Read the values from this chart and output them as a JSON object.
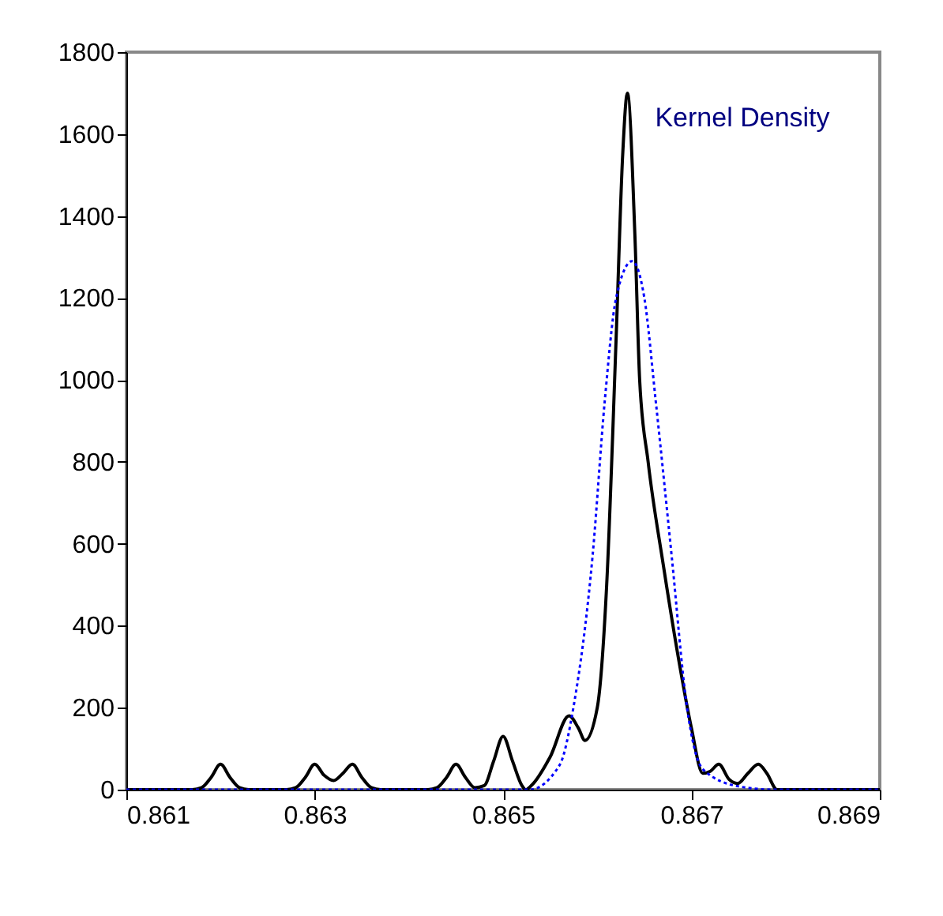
{
  "chart_data": {
    "type": "line",
    "xlim": [
      0.861,
      0.869
    ],
    "xticks": [
      0.861,
      0.863,
      0.865,
      0.867,
      0.869
    ],
    "ylim": [
      0,
      1800
    ],
    "yticks": [
      0,
      200,
      400,
      600,
      800,
      1000,
      1200,
      1400,
      1600,
      1800
    ],
    "grid": false,
    "legend": false,
    "series": [
      {
        "color": "#000000",
        "line_style": "solid",
        "x": [
          0.861,
          0.8617,
          0.8618,
          0.8619,
          0.862,
          0.8621,
          0.8622,
          0.8623,
          0.8627,
          0.8628,
          0.8629,
          0.863,
          0.8631,
          0.8632,
          0.8633,
          0.8634,
          0.8635,
          0.8636,
          0.8637,
          0.8642,
          0.8643,
          0.8644,
          0.8645,
          0.8646,
          0.8647,
          0.8648,
          0.8649,
          0.865,
          0.8651,
          0.8652,
          0.86524,
          0.8653,
          0.8655,
          0.8657,
          0.8658,
          0.86587,
          0.866,
          0.8661,
          0.8662,
          0.86627,
          0.86632,
          0.8664,
          0.86645,
          0.86654,
          0.8667,
          0.86687,
          0.867,
          0.86712,
          0.8672,
          0.86729,
          0.8674,
          0.86749,
          0.8676,
          0.86771,
          0.8678,
          0.86791,
          0.869
        ],
        "values": [
          0,
          0,
          5,
          30,
          62,
          30,
          5,
          0,
          0,
          5,
          30,
          62,
          35,
          22,
          40,
          62,
          30,
          5,
          0,
          0,
          5,
          30,
          62,
          30,
          5,
          10,
          70,
          130,
          70,
          10,
          0,
          10,
          80,
          180,
          150,
          120,
          200,
          500,
          1100,
          1550,
          1700,
          1350,
          1000,
          800,
          550,
          310,
          150,
          40,
          45,
          62,
          25,
          15,
          40,
          62,
          40,
          0,
          0
        ]
      },
      {
        "name": "Kernel Density",
        "color": "#0000ff",
        "line_style": "dotted",
        "x": [
          0.861,
          0.8652,
          0.86528,
          0.8656,
          0.86575,
          0.86595,
          0.86608,
          0.8662,
          0.86637,
          0.8665,
          0.86662,
          0.86679,
          0.86695,
          0.86712,
          0.8675,
          0.86788,
          0.869
        ],
        "values": [
          0,
          0,
          0,
          60,
          205,
          570,
          950,
          1200,
          1290,
          1200,
          950,
          570,
          205,
          50,
          8,
          0,
          0
        ]
      }
    ]
  }
}
